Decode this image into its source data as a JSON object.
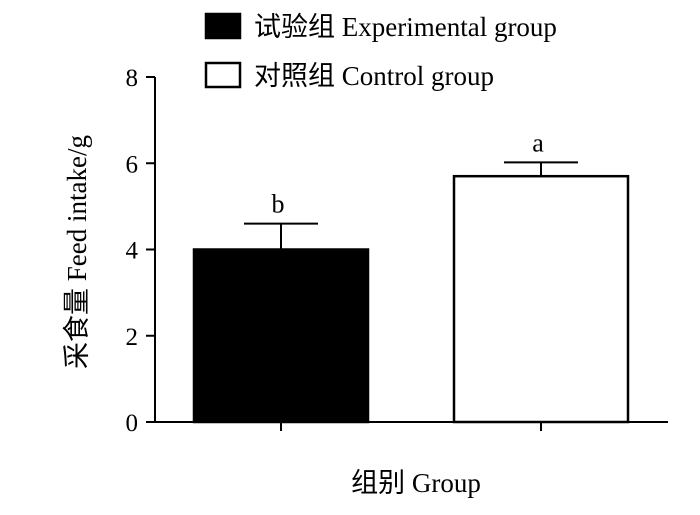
{
  "chart_data": {
    "type": "bar",
    "categories": [
      "试验组 Experimental group",
      "对照组 Control group"
    ],
    "values": [
      4.0,
      5.7
    ],
    "error_bars": [
      0.6,
      0.32
    ],
    "significance_letters": [
      "b",
      "a"
    ],
    "bar_colors": [
      "#000000",
      "#ffffff"
    ],
    "edge_color": "#000000",
    "xlabel": "组别  Group",
    "ylabel": "采食量  Feed intake/g",
    "ylim": [
      0,
      8
    ],
    "yticks": [
      0,
      2,
      4,
      6,
      8
    ],
    "grid": false,
    "legend": {
      "position": "top",
      "entries": [
        {
          "label": "试验组 Experimental group",
          "color": "#000000"
        },
        {
          "label": "对照组 Control group",
          "color": "#ffffff"
        }
      ]
    }
  }
}
